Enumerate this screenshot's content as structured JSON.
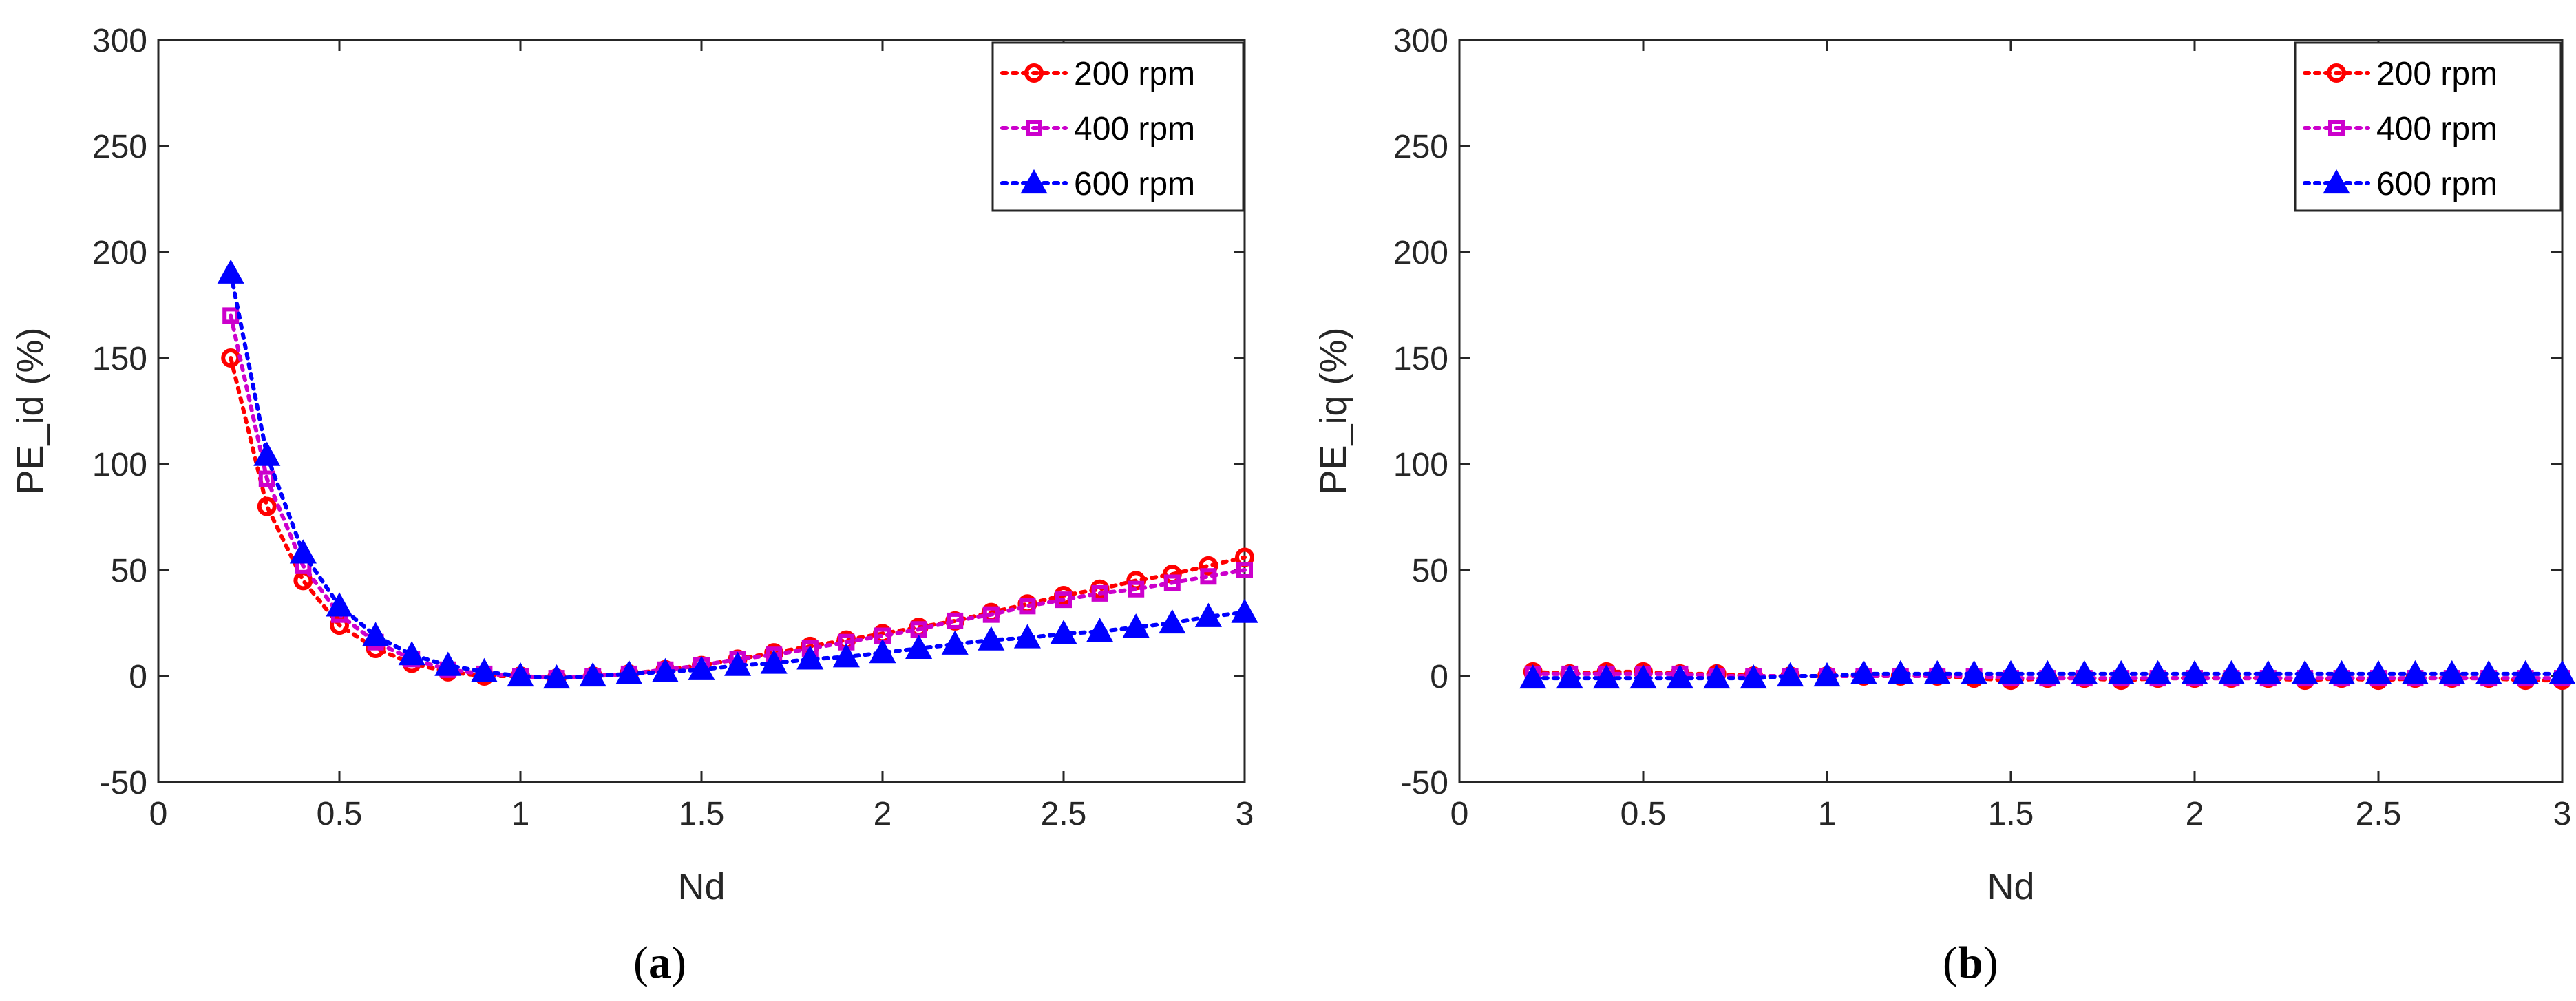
{
  "chart_data": [
    {
      "type": "line",
      "panel": "a",
      "caption_letter": "a",
      "xlabel": "Nd",
      "ylabel": "PE_id (%)",
      "xlim": [
        0,
        3
      ],
      "ylim": [
        -50,
        300
      ],
      "xticks": [
        0,
        0.5,
        1,
        1.5,
        2,
        2.5,
        3
      ],
      "xtick_labels": [
        "0",
        "0.5",
        "1",
        "1.5",
        "2",
        "2.5",
        "3"
      ],
      "yticks": [
        -50,
        0,
        50,
        100,
        150,
        200,
        250,
        300
      ],
      "ytick_labels": [
        "-50",
        "0",
        "50",
        "100",
        "150",
        "200",
        "250",
        "300"
      ],
      "legend_position": "top-right",
      "x": [
        0.2,
        0.3,
        0.4,
        0.5,
        0.6,
        0.7,
        0.8,
        0.9,
        1.0,
        1.1,
        1.2,
        1.3,
        1.4,
        1.5,
        1.6,
        1.7,
        1.8,
        1.9,
        2.0,
        2.1,
        2.2,
        2.3,
        2.4,
        2.5,
        2.6,
        2.7,
        2.8,
        2.9,
        3.0
      ],
      "series": [
        {
          "name": "200 rpm",
          "color": "#ff0000",
          "marker": "circle",
          "values": [
            150,
            80,
            45,
            24,
            13,
            6,
            2,
            0,
            0,
            -1,
            0,
            1,
            3,
            5,
            8,
            11,
            14,
            17,
            20,
            23,
            26,
            30,
            34,
            38,
            41,
            45,
            48,
            52,
            56
          ]
        },
        {
          "name": "400 rpm",
          "color": "#cc00cc",
          "marker": "square",
          "values": [
            170,
            93,
            52,
            29,
            16,
            8,
            3,
            1,
            0,
            -1,
            0,
            1,
            3,
            5,
            8,
            10,
            13,
            16,
            19,
            22,
            26,
            29,
            33,
            36,
            39,
            41,
            44,
            47,
            50
          ]
        },
        {
          "name": "600 rpm",
          "color": "#0000ff",
          "marker": "triangle",
          "values": [
            190,
            104,
            58,
            33,
            19,
            10,
            5,
            2,
            0,
            -1,
            0,
            1,
            2,
            3,
            5,
            6,
            8,
            9,
            11,
            13,
            15,
            17,
            18,
            20,
            21,
            23,
            25,
            28,
            30
          ]
        }
      ]
    },
    {
      "type": "line",
      "panel": "b",
      "caption_letter": "b",
      "xlabel": "Nd",
      "ylabel": "PE_iq (%)",
      "xlim": [
        0,
        3
      ],
      "ylim": [
        -50,
        300
      ],
      "xticks": [
        0,
        0.5,
        1,
        1.5,
        2,
        2.5,
        3
      ],
      "xtick_labels": [
        "0",
        "0.5",
        "1",
        "1.5",
        "2",
        "2.5",
        "3"
      ],
      "yticks": [
        -50,
        0,
        50,
        100,
        150,
        200,
        250,
        300
      ],
      "ytick_labels": [
        "-50",
        "0",
        "50",
        "100",
        "150",
        "200",
        "250",
        "300"
      ],
      "legend_position": "top-right",
      "x": [
        0.2,
        0.3,
        0.4,
        0.5,
        0.6,
        0.7,
        0.8,
        0.9,
        1.0,
        1.1,
        1.2,
        1.3,
        1.4,
        1.5,
        1.6,
        1.7,
        1.8,
        1.9,
        2.0,
        2.1,
        2.2,
        2.3,
        2.4,
        2.5,
        2.6,
        2.7,
        2.8,
        2.9,
        3.0
      ],
      "series": [
        {
          "name": "200 rpm",
          "color": "#ff0000",
          "marker": "circle",
          "values": [
            2,
            1,
            2,
            2,
            1,
            1,
            0,
            0,
            0,
            0,
            0,
            0,
            -1,
            -2,
            -1,
            -1,
            -2,
            -1,
            -1,
            -1,
            -1,
            -2,
            -1,
            -2,
            -1,
            -1,
            -1,
            -2,
            -2
          ]
        },
        {
          "name": "400 rpm",
          "color": "#cc00cc",
          "marker": "square",
          "values": [
            1,
            1,
            1,
            1,
            1,
            0,
            0,
            0,
            0,
            0,
            0,
            0,
            0,
            -1,
            -1,
            -1,
            -1,
            -1,
            -1,
            -1,
            -1,
            -1,
            -1,
            -1,
            -1,
            -1,
            -1,
            -1,
            -1
          ]
        },
        {
          "name": "600 rpm",
          "color": "#0000ff",
          "marker": "triangle",
          "values": [
            -1,
            -1,
            -1,
            -1,
            -1,
            -1,
            -1,
            0,
            0,
            1,
            1,
            1,
            1,
            1,
            1,
            1,
            1,
            1,
            1,
            1,
            1,
            1,
            1,
            1,
            1,
            1,
            1,
            1,
            1
          ]
        }
      ]
    }
  ]
}
